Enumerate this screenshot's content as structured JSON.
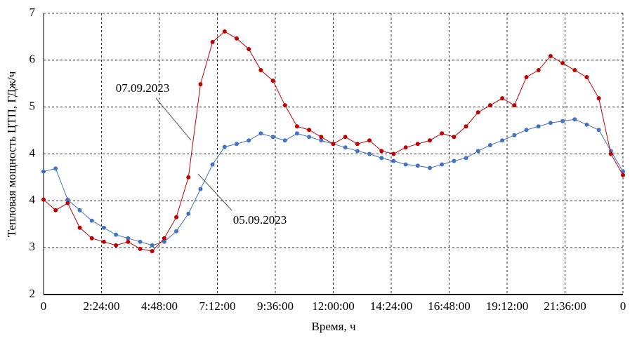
{
  "chart_data": {
    "type": "line",
    "x_label": "Время, ч",
    "y_label": "Тепловая мощность ЦТП, ГДж/ч",
    "annotations": [
      "07.09.2023",
      "05.09.2023"
    ],
    "x": [
      0,
      0.5,
      1,
      1.5,
      2,
      2.5,
      3,
      3.5,
      4,
      4.5,
      5,
      5.5,
      6,
      6.5,
      7,
      7.5,
      8,
      8.5,
      9,
      9.5,
      10,
      10.5,
      11,
      11.5,
      12,
      12.5,
      13,
      13.5,
      14,
      14.5,
      15,
      15.5,
      16,
      16.5,
      17,
      17.5,
      18,
      18.5,
      19,
      19.5,
      20,
      20.5,
      21,
      21.5,
      22,
      22.5,
      23,
      23.5,
      24
    ],
    "series": [
      {
        "name": "05.09.2023",
        "color": "#4472c4",
        "values": [
          4.1,
          4.15,
          3.62,
          3.44,
          3.26,
          3.14,
          3.02,
          2.96,
          2.9,
          2.84,
          2.9,
          3.08,
          3.38,
          3.8,
          4.22,
          4.52,
          4.57,
          4.63,
          4.75,
          4.69,
          4.63,
          4.75,
          4.69,
          4.63,
          4.57,
          4.51,
          4.45,
          4.4,
          4.33,
          4.28,
          4.22,
          4.2,
          4.16,
          4.22,
          4.28,
          4.33,
          4.45,
          4.55,
          4.63,
          4.72,
          4.81,
          4.87,
          4.93,
          4.96,
          4.99,
          4.9,
          4.81,
          4.45,
          4.1
        ]
      },
      {
        "name": "07.09.2023",
        "color": "#c00000",
        "values": [
          3.62,
          3.44,
          3.56,
          3.14,
          2.96,
          2.9,
          2.84,
          2.9,
          2.78,
          2.74,
          2.96,
          3.32,
          4.0,
          5.59,
          6.31,
          6.49,
          6.37,
          6.19,
          5.83,
          5.65,
          5.23,
          4.87,
          4.81,
          4.69,
          4.57,
          4.69,
          4.57,
          4.63,
          4.45,
          4.4,
          4.51,
          4.57,
          4.63,
          4.75,
          4.69,
          4.87,
          5.11,
          5.23,
          5.35,
          5.23,
          5.71,
          5.83,
          6.07,
          5.95,
          5.83,
          5.71,
          5.35,
          4.4,
          4.04
        ]
      }
    ],
    "xlim": [
      0,
      24
    ],
    "xticks": [
      0,
      {
        "value": 2.4,
        "label": "2:24:00"
      },
      {
        "value": 4.8,
        "label": "4:48:00"
      },
      {
        "value": 7.2,
        "label": "7:12:00"
      },
      {
        "value": 9.6,
        "label": "9:36:00"
      },
      {
        "value": 12,
        "label": "12:00:00"
      },
      {
        "value": 14.4,
        "label": "14:24:00"
      },
      {
        "value": 16.8,
        "label": "16:48:00"
      },
      {
        "value": 19.2,
        "label": "19:12:00"
      },
      {
        "value": 21.6,
        "label": "21:36:00"
      },
      {
        "value": 24,
        "label": "0"
      }
    ],
    "ylim": [
      2,
      6.8
    ],
    "yticks": [
      2,
      {
        "value": 2.8,
        "label": "3"
      },
      {
        "value": 3.6,
        "label": "4"
      },
      {
        "value": 4.4,
        "label": "4"
      },
      {
        "value": 5.2,
        "label": "5"
      },
      {
        "value": 6,
        "label": "6"
      },
      {
        "value": 6.8,
        "label": "7"
      }
    ],
    "grid": true
  }
}
